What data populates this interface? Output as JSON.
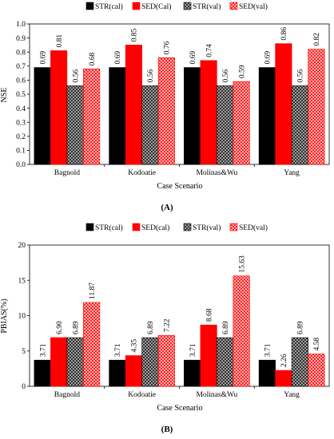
{
  "colors": {
    "str_cal": "#000000",
    "sed_cal": "#ff0000",
    "str_val_fg": "#1a1a1a",
    "str_val_bg": "#bfbfbf",
    "sed_val_fg": "#ff0000",
    "sed_val_bg": "#ffe0e0"
  },
  "chart_data": [
    {
      "panel_label": "(A)",
      "type": "bar",
      "ylabel": "NSE",
      "xlabel": "Case Scenario",
      "ylim": [
        0,
        1.0
      ],
      "yticks": [
        "0.0",
        "0.1",
        "0.2",
        "0.3",
        "0.4",
        "0.5",
        "0.6",
        "0.7",
        "0.8",
        "0.9",
        "1.0"
      ],
      "yticks_values": [
        0,
        0.1,
        0.2,
        0.3,
        0.4,
        0.5,
        0.6,
        0.7,
        0.8,
        0.9,
        1.0
      ],
      "categories": [
        "Bagnold",
        "Kodoatie",
        "Molinas&Wu",
        "Yang"
      ],
      "legend_position": "top",
      "series": [
        {
          "name": "STR(cal)",
          "style": "solid-black",
          "values": [
            0.69,
            0.69,
            0.69,
            0.69
          ],
          "labels": [
            "0.69",
            "0.69",
            "0.69",
            "0.69"
          ]
        },
        {
          "name": "SED(Cal)",
          "style": "solid-red",
          "values": [
            0.81,
            0.85,
            0.74,
            0.86
          ],
          "labels": [
            "0.81",
            "0.85",
            "0.74",
            "0.86"
          ]
        },
        {
          "name": "STR(val)",
          "style": "hatched-black",
          "values": [
            0.56,
            0.56,
            0.56,
            0.56
          ],
          "labels": [
            "0.56",
            "0.56",
            "0.56",
            "0.56"
          ]
        },
        {
          "name": "SED(val)",
          "style": "hatched-red",
          "values": [
            0.68,
            0.76,
            0.59,
            0.82
          ],
          "labels": [
            "0.68",
            "0.76",
            "0.59",
            "0.82"
          ]
        }
      ]
    },
    {
      "panel_label": "(B)",
      "type": "bar",
      "ylabel": "PBIAS(%)",
      "xlabel": "Case Scenario",
      "ylim": [
        0,
        20
      ],
      "yticks": [
        "0",
        "5",
        "10",
        "15",
        "20"
      ],
      "yticks_values": [
        0,
        5,
        10,
        15,
        20
      ],
      "categories": [
        "Bagnold",
        "Kodoatie",
        "Molinas&Wu",
        "Yang"
      ],
      "legend_position": "top",
      "series": [
        {
          "name": "STR(cal)",
          "style": "solid-black",
          "values": [
            3.71,
            3.71,
            3.71,
            3.71
          ],
          "labels": [
            "3.71",
            "3.71",
            "3.71",
            "3.71"
          ]
        },
        {
          "name": "SED(cal)",
          "style": "solid-red",
          "values": [
            6.9,
            4.35,
            8.68,
            2.26
          ],
          "labels": [
            "6.90",
            "4.35",
            "8.68",
            "2.26"
          ]
        },
        {
          "name": "STR(val)",
          "style": "hatched-black",
          "values": [
            6.89,
            6.89,
            6.89,
            6.89
          ],
          "labels": [
            "6.89",
            "6.89",
            "6.89",
            "6.89"
          ]
        },
        {
          "name": "SED(val)",
          "style": "hatched-red",
          "values": [
            11.87,
            7.22,
            15.63,
            4.58
          ],
          "labels": [
            "11.87",
            "7.22",
            "15.63",
            "4.58"
          ]
        }
      ]
    }
  ]
}
